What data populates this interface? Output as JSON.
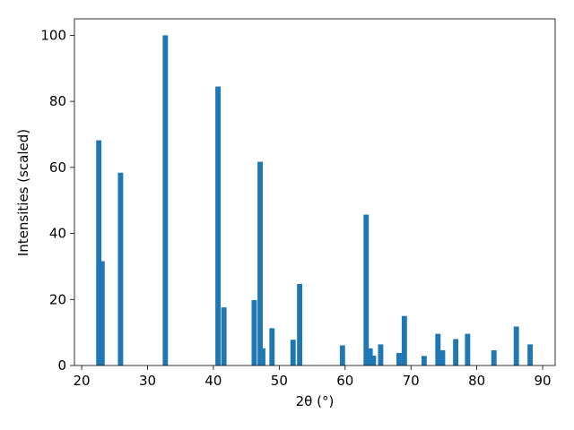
{
  "chart_data": {
    "type": "bar",
    "xlabel": "2θ (°)",
    "ylabel": "Intensities (scaled)",
    "x": [
      22.6,
      23.1,
      25.9,
      32.7,
      40.7,
      41.6,
      46.2,
      47.1,
      47.5,
      48.9,
      52.1,
      53.1,
      59.6,
      63.2,
      63.8,
      64.3,
      65.4,
      68.2,
      69.0,
      72.0,
      74.1,
      74.8,
      76.8,
      78.6,
      82.6,
      86.0,
      88.1
    ],
    "values": [
      68.2,
      31.6,
      58.4,
      100,
      84.5,
      17.6,
      19.8,
      61.7,
      5.2,
      11.3,
      7.8,
      24.7,
      6.1,
      45.7,
      5.2,
      3.0,
      6.4,
      3.8,
      15.0,
      2.9,
      9.6,
      4.6,
      8.0,
      9.6,
      4.6,
      11.8,
      6.4
    ],
    "color": "#1f77b4",
    "xlim": [
      18.9,
      91.9
    ],
    "xticks": [
      20,
      30,
      40,
      50,
      60,
      70,
      80,
      90
    ],
    "ylim": [
      0,
      105
    ],
    "yticks": [
      0,
      20,
      40,
      60,
      80,
      100
    ]
  }
}
